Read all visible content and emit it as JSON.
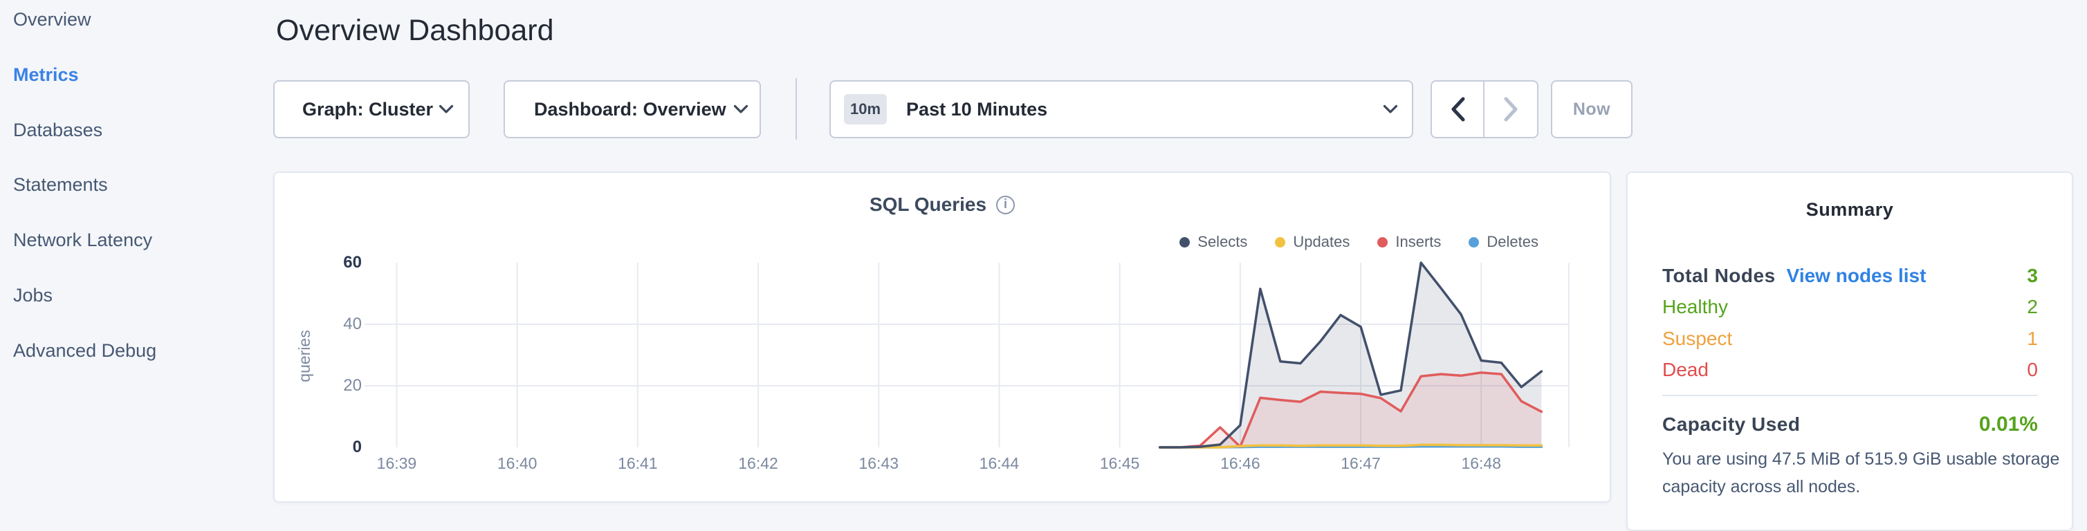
{
  "sidebar": {
    "items": [
      {
        "label": "Overview",
        "active": false
      },
      {
        "label": "Metrics",
        "active": true
      },
      {
        "label": "Databases",
        "active": false
      },
      {
        "label": "Statements",
        "active": false
      },
      {
        "label": "Network Latency",
        "active": false
      },
      {
        "label": "Jobs",
        "active": false
      },
      {
        "label": "Advanced Debug",
        "active": false
      }
    ]
  },
  "header": {
    "title": "Overview Dashboard"
  },
  "toolbar": {
    "graph_dropdown": {
      "label": "Graph: Cluster"
    },
    "dashboard_dropdown": {
      "label": "Dashboard: Overview"
    },
    "time_picker": {
      "badge": "10m",
      "label": "Past 10 Minutes"
    },
    "now_label": "Now"
  },
  "chart_data": {
    "type": "line",
    "title": "SQL Queries",
    "ylabel": "queries",
    "ylim": [
      0,
      60
    ],
    "yticks": [
      0,
      20,
      40,
      60
    ],
    "grid_yticks": [
      20,
      40
    ],
    "x_window": [
      "16:38:44",
      "16:48:44"
    ],
    "x_ticks": [
      "16:39",
      "16:40",
      "16:41",
      "16:42",
      "16:43",
      "16:44",
      "16:45",
      "16:46",
      "16:47",
      "16:48"
    ],
    "legend_position": "top-right",
    "grid": true,
    "samples_start": "16:45:20",
    "sample_interval_sec": 10,
    "series": [
      {
        "name": "Selects",
        "color": "#42506b",
        "fill": "rgba(66,80,107,0.13)",
        "values": [
          0,
          0,
          0.2,
          0.9,
          7.2,
          51.5,
          27.9,
          27.3,
          34.5,
          43,
          39.2,
          17.1,
          18.5,
          60,
          51.7,
          43.2,
          28.2,
          27.5,
          19.6,
          24.7
        ]
      },
      {
        "name": "Updates",
        "color": "#f2c140",
        "fill": "none",
        "values": [
          0,
          0,
          0,
          0,
          0.4,
          0.6,
          0.6,
          0.5,
          0.6,
          0.6,
          0.6,
          0.5,
          0.5,
          0.8,
          0.8,
          0.7,
          0.7,
          0.7,
          0.6,
          0.6
        ]
      },
      {
        "name": "Inserts",
        "color": "#e05c5c",
        "fill": "rgba(224,92,92,0.12)",
        "values": [
          0,
          0,
          0.5,
          6.5,
          0.2,
          16.1,
          15.4,
          14.8,
          18.1,
          17.7,
          17.4,
          16,
          11.7,
          23.1,
          23.8,
          23.3,
          24.3,
          23.8,
          15,
          11.6
        ]
      },
      {
        "name": "Deletes",
        "color": "#57a0d9",
        "fill": "none",
        "values": [
          0,
          0,
          0,
          0,
          0.1,
          0.2,
          0.2,
          0.2,
          0.2,
          0.2,
          0.2,
          0.2,
          0.2,
          0.3,
          0.3,
          0.3,
          0.3,
          0.3,
          0.2,
          0.2
        ]
      }
    ]
  },
  "summary": {
    "heading": "Summary",
    "nodes": {
      "label": "Total Nodes",
      "link": "View nodes list",
      "total": "3",
      "total_color": "#55a31e",
      "rows": [
        {
          "label": "Healthy",
          "value": "2",
          "color": "#55a31e"
        },
        {
          "label": "Suspect",
          "value": "1",
          "color": "#efa13f"
        },
        {
          "label": "Dead",
          "value": "0",
          "color": "#e14d4d"
        }
      ]
    },
    "capacity": {
      "label": "Capacity Used",
      "value": "0.01%",
      "value_color": "#55a31e",
      "description": "You are using 47.5 MiB of 515.9 GiB usable storage capacity across all nodes."
    }
  }
}
